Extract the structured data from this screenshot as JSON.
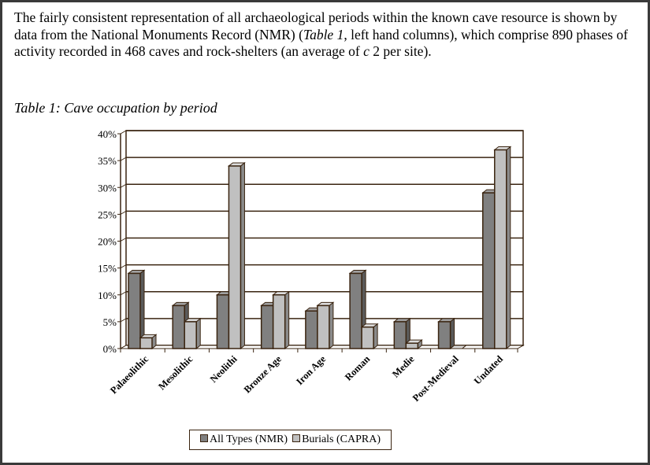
{
  "paragraph": {
    "p1": "The fairly consistent representation of all archaeological periods within the known cave resource is shown by data from the National Monuments Record (NMR) (",
    "table_ref": "Table 1",
    "p2": ", left hand columns), which comprise 890 phases of activity recorded in 468 caves and rock-shelters (an average of ",
    "c": "c",
    "p3": " 2 per site)."
  },
  "caption": "Table 1: Cave occupation by period",
  "chart_data": {
    "type": "bar",
    "title": "Table 1: Cave occupation by period",
    "categories": [
      "Palaeolithic",
      "Mesolithic",
      "Neolithic",
      "Bronze Age",
      "Iron Age",
      "Roman",
      "Medieval",
      "Post-Medieval",
      "Undated"
    ],
    "category_labels_visible": [
      "Palaeolithic",
      "Mesolithic",
      "Neolithi",
      "Bronze Age",
      "Iron Age",
      "Roman",
      "Medie",
      "Post-Medieval",
      "Undated"
    ],
    "series": [
      {
        "name": "All Types (NMR)",
        "values": [
          14,
          8,
          10,
          8,
          7,
          14,
          5,
          5,
          29
        ],
        "color": "#808080"
      },
      {
        "name": "Burials (CAPRA)",
        "values": [
          2,
          5,
          34,
          10,
          8,
          4,
          1,
          0,
          37
        ],
        "color": "#c0c0c0"
      }
    ],
    "yticks": [
      "0%",
      "5%",
      "10%",
      "15%",
      "20%",
      "25%",
      "30%",
      "35%",
      "40%"
    ],
    "ylim": [
      0,
      40
    ],
    "grid": true,
    "legend": "bottom"
  }
}
